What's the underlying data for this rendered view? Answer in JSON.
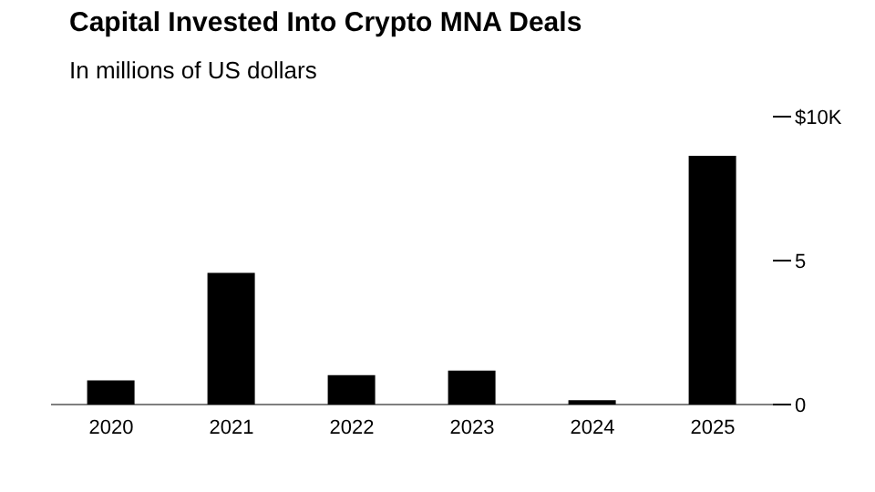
{
  "chart_data": {
    "type": "bar",
    "title": "Capital Invested Into Crypto MNA Deals",
    "subtitle": "In millions of US dollars",
    "categories": [
      "2020",
      "2021",
      "2022",
      "2023",
      "2024",
      "2025"
    ],
    "series": [
      {
        "color": "#000000",
        "values": [
          0.84,
          4.57,
          1.02,
          1.18,
          0.15,
          8.64
        ]
      }
    ],
    "ylim": [
      0,
      10
    ],
    "yticks": [
      0,
      5,
      {
        "value": 10,
        "label": "$10K"
      }
    ],
    "grid": false,
    "legend": false
  }
}
